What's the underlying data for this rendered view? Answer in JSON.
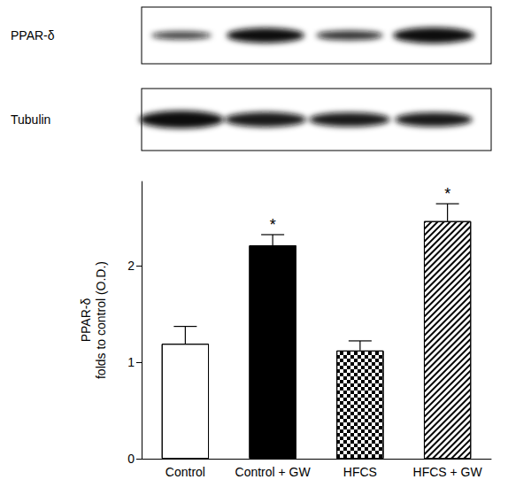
{
  "blot": {
    "rows": [
      "PPAR-δ",
      "Tubulin"
    ]
  },
  "chart_data": {
    "type": "bar",
    "ylabel": "PPAR-δ\nfolds to control (O.D.)",
    "categories": [
      "Control",
      "Control + GW",
      "HFCS",
      "HFCS + GW"
    ],
    "values": [
      1.19,
      2.21,
      1.12,
      2.46
    ],
    "errors": [
      0.18,
      0.11,
      0.1,
      0.18
    ],
    "colors": [
      "#ffffff",
      "#000000",
      "#ffffff",
      "#ffffff"
    ],
    "annotations": [
      {
        "category": "Control + GW",
        "text": "*"
      },
      {
        "category": "HFCS + GW",
        "text": "*"
      }
    ],
    "ylim": [
      0,
      2.87
    ],
    "yticks": [
      0,
      1,
      2
    ],
    "grid": false
  }
}
